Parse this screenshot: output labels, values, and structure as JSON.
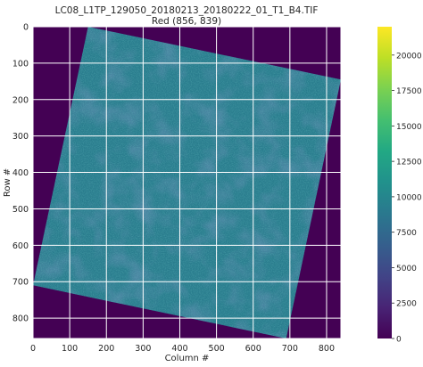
{
  "chart_data": {
    "type": "heatmap",
    "title": "LC08_L1TP_129050_20180213_20180222_01_T1_B4.TIF",
    "subtitle": "Red (856, 839)",
    "xlabel": "Column #",
    "ylabel": "Row #",
    "xlim": [
      0,
      839
    ],
    "ylim": [
      856,
      0
    ],
    "x_ticks": [
      0,
      100,
      200,
      300,
      400,
      500,
      600,
      700,
      800
    ],
    "y_ticks": [
      0,
      100,
      200,
      300,
      400,
      500,
      600,
      700,
      800
    ],
    "grid": true,
    "colormap": "viridis",
    "background_value": 0,
    "scene_corners": [
      [
        150,
        0
      ],
      [
        839,
        145
      ],
      [
        690,
        856
      ],
      [
        0,
        710
      ]
    ],
    "scene_value_range": [
      5000,
      12500
    ],
    "colorbar": {
      "min": 0,
      "max": 22000,
      "ticks": [
        0,
        2500,
        5000,
        7500,
        10000,
        12500,
        15000,
        17500,
        20000
      ]
    },
    "colors": {
      "background_fill": "#440154",
      "scene_base": "#2a7d8e",
      "grid": "#ffffff"
    }
  }
}
